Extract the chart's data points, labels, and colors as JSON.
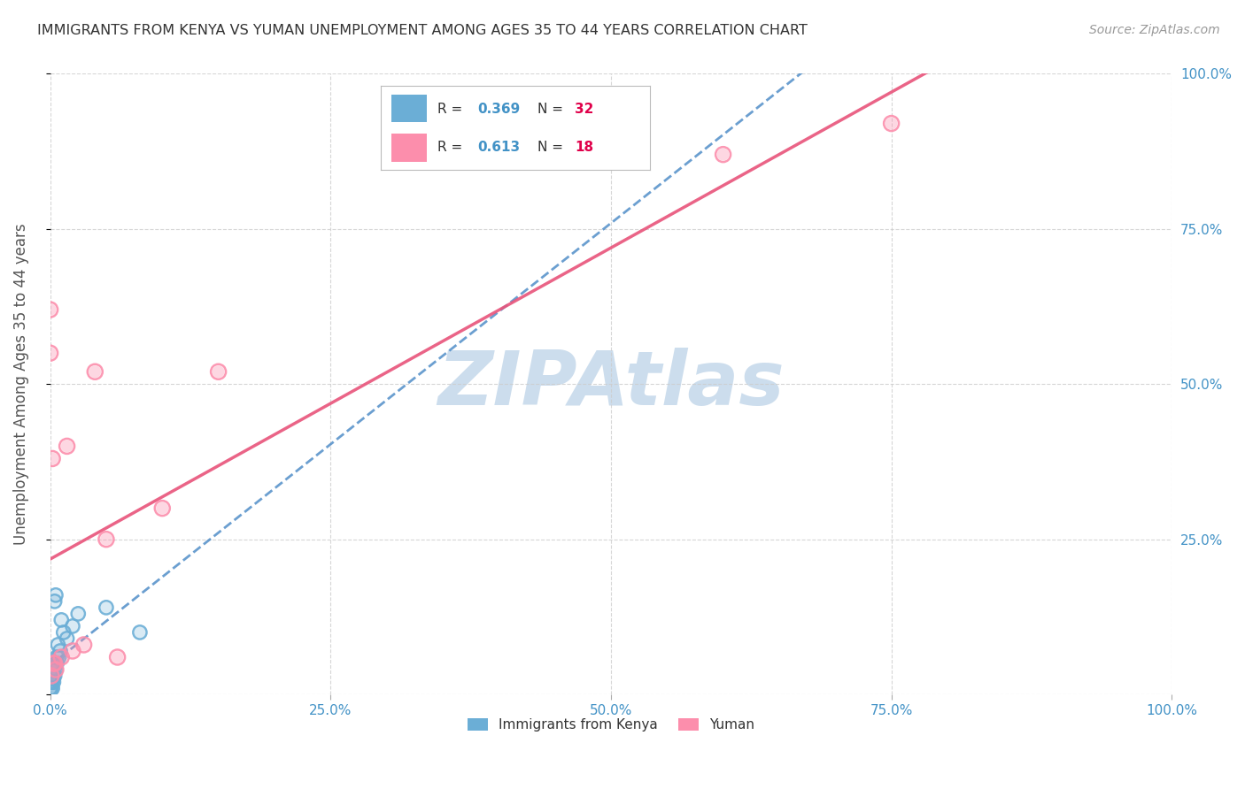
{
  "title": "IMMIGRANTS FROM KENYA VS YUMAN UNEMPLOYMENT AMONG AGES 35 TO 44 YEARS CORRELATION CHART",
  "source": "Source: ZipAtlas.com",
  "ylabel": "Unemployment Among Ages 35 to 44 years",
  "legend_labels": [
    "Immigrants from Kenya",
    "Yuman"
  ],
  "R_kenya": 0.369,
  "N_kenya": 32,
  "R_yuman": 0.613,
  "N_yuman": 18,
  "kenya_color": "#6baed6",
  "yuman_color": "#fc8eac",
  "kenya_line_color": "#3a7fc1",
  "yuman_line_color": "#e8537a",
  "watermark": "ZIPAtlas",
  "watermark_color": "#ccdded",
  "xlim": [
    0,
    1.0
  ],
  "ylim": [
    0,
    1.0
  ],
  "xticks": [
    0.0,
    0.25,
    0.5,
    0.75,
    1.0
  ],
  "yticks": [
    0.0,
    0.25,
    0.5,
    0.75,
    1.0
  ],
  "xtick_labels": [
    "0.0%",
    "25.0%",
    "50.0%",
    "75.0%",
    "100.0%"
  ],
  "ytick_labels": [
    "",
    "25.0%",
    "50.0%",
    "75.0%",
    "100.0%"
  ],
  "kenya_x": [
    0.0,
    0.0,
    0.0,
    0.001,
    0.001,
    0.001,
    0.001,
    0.002,
    0.002,
    0.002,
    0.002,
    0.002,
    0.003,
    0.003,
    0.003,
    0.003,
    0.004,
    0.004,
    0.005,
    0.005,
    0.006,
    0.006,
    0.007,
    0.008,
    0.009,
    0.01,
    0.012,
    0.015,
    0.02,
    0.025,
    0.05,
    0.08
  ],
  "kenya_y": [
    0.005,
    0.01,
    0.02,
    0.01,
    0.02,
    0.03,
    0.04,
    0.01,
    0.02,
    0.03,
    0.04,
    0.05,
    0.02,
    0.03,
    0.04,
    0.05,
    0.03,
    0.15,
    0.04,
    0.16,
    0.05,
    0.06,
    0.08,
    0.06,
    0.07,
    0.12,
    0.1,
    0.09,
    0.11,
    0.13,
    0.14,
    0.1
  ],
  "yuman_x": [
    0.0,
    0.0,
    0.001,
    0.002,
    0.003,
    0.004,
    0.005,
    0.01,
    0.015,
    0.02,
    0.03,
    0.04,
    0.05,
    0.06,
    0.1,
    0.15,
    0.6,
    0.75
  ],
  "yuman_y": [
    0.62,
    0.55,
    0.03,
    0.38,
    0.05,
    0.05,
    0.04,
    0.06,
    0.4,
    0.07,
    0.08,
    0.52,
    0.25,
    0.06,
    0.3,
    0.52,
    0.87,
    0.92
  ],
  "background_color": "#ffffff",
  "grid_color": "#cccccc",
  "title_color": "#333333",
  "axis_label_color": "#555555",
  "tick_color": "#4292c6",
  "legend_R_color": "#4292c6",
  "legend_N_color": "#e0004a"
}
